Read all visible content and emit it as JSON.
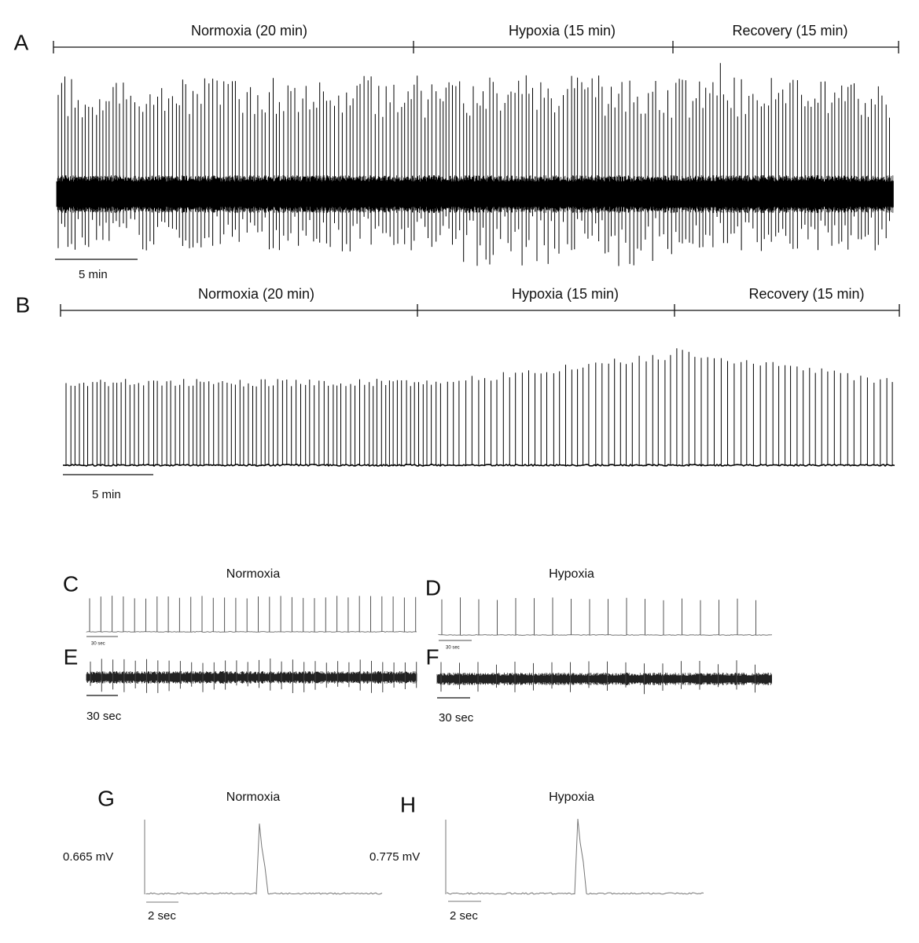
{
  "panels": [
    {
      "label": "A",
      "segments": [
        "Normoxia (20 min)",
        "Hypoxia (15 min)",
        "Recovery (15 min)"
      ],
      "scale": "5 min"
    },
    {
      "label": "B",
      "segments": [
        "Normoxia (20 min)",
        "Hypoxia (15 min)",
        "Recovery (15 min)"
      ],
      "scale": "5 min"
    },
    {
      "label": "C",
      "title": "Normoxia",
      "scale": "30 sec"
    },
    {
      "label": "D",
      "title": "Hypoxia",
      "scale": "30 sec"
    },
    {
      "label": "E",
      "scale": "30 sec"
    },
    {
      "label": "F",
      "scale": "30 sec"
    },
    {
      "label": "G",
      "title": "Normoxia",
      "amplitude": "0.665 mV",
      "scale": "2 sec"
    },
    {
      "label": "H",
      "title": "Hypoxia",
      "amplitude": "0.775 mV",
      "scale": "2 sec"
    }
  ]
}
